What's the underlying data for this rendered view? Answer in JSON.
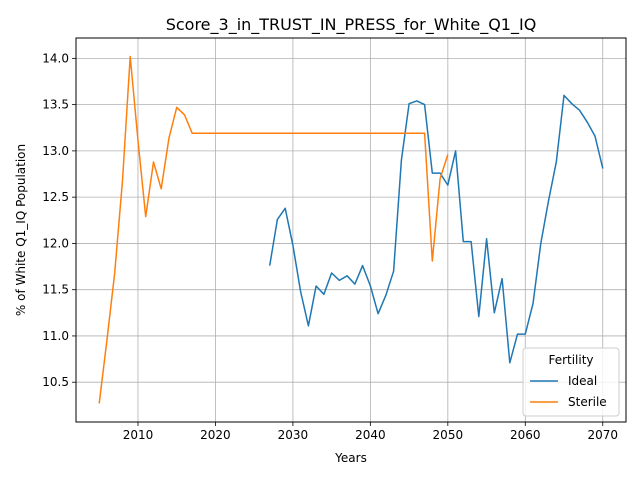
{
  "chart_data": {
    "type": "line",
    "title": "Score_3_in_TRUST_IN_PRESS_for_White_Q1_IQ",
    "xlabel": "Years",
    "ylabel": "% of White Q1_IQ Population",
    "xlim": [
      2002,
      2073
    ],
    "ylim": [
      10.07,
      14.22
    ],
    "xticks": [
      2010,
      2020,
      2030,
      2040,
      2050,
      2060,
      2070
    ],
    "yticks": [
      10.5,
      11.0,
      11.5,
      12.0,
      12.5,
      13.0,
      13.5,
      14.0
    ],
    "xtick_labels": [
      "2010",
      "2020",
      "2030",
      "2040",
      "2050",
      "2060",
      "2070"
    ],
    "ytick_labels": [
      "10.5",
      "11.0",
      "11.5",
      "12.0",
      "12.5",
      "13.0",
      "13.5",
      "14.0"
    ],
    "grid": true,
    "legend": {
      "title": "Fertility",
      "placement": "lower right"
    },
    "series": [
      {
        "name": "Ideal",
        "color": "#1f77b4",
        "x": [
          2027,
          2028,
          2029,
          2030,
          2031,
          2032,
          2033,
          2034,
          2035,
          2036,
          2037,
          2038,
          2039,
          2040,
          2041,
          2042,
          2043,
          2044,
          2045,
          2046,
          2047,
          2048,
          2049,
          2050,
          2051,
          2052,
          2053,
          2054,
          2055,
          2056,
          2057,
          2058,
          2059,
          2060,
          2061,
          2062,
          2063,
          2064,
          2065,
          2066,
          2067,
          2068,
          2069,
          2070
        ],
        "y": [
          11.76,
          12.26,
          12.38,
          11.98,
          11.48,
          11.11,
          11.54,
          11.45,
          11.68,
          11.6,
          11.65,
          11.56,
          11.76,
          11.54,
          11.24,
          11.44,
          11.7,
          12.9,
          13.51,
          13.54,
          13.5,
          12.76,
          12.76,
          12.63,
          13.0,
          12.02,
          12.02,
          11.21,
          12.05,
          11.25,
          11.62,
          10.71,
          11.02,
          11.02,
          11.35,
          12.0,
          12.46,
          12.88,
          13.6,
          13.51,
          13.44,
          13.31,
          13.16,
          12.81
        ]
      },
      {
        "name": "Sterile",
        "color": "#ff7f0e",
        "x": [
          2005,
          2006,
          2007,
          2008,
          2009,
          2010,
          2011,
          2012,
          2013,
          2014,
          2015,
          2016,
          2017,
          2018,
          2019,
          2020,
          2021,
          2022,
          2023,
          2024,
          2025,
          2026,
          2027,
          2028,
          2029,
          2030,
          2031,
          2032,
          2033,
          2034,
          2035,
          2036,
          2037,
          2038,
          2039,
          2040,
          2041,
          2042,
          2043,
          2044,
          2045,
          2046,
          2047,
          2048,
          2049,
          2050
        ],
        "y": [
          10.27,
          10.96,
          11.68,
          12.68,
          14.02,
          13.11,
          12.29,
          12.88,
          12.59,
          13.14,
          13.47,
          13.39,
          13.19,
          13.19,
          13.19,
          13.19,
          13.19,
          13.19,
          13.19,
          13.19,
          13.19,
          13.19,
          13.19,
          13.19,
          13.19,
          13.19,
          13.19,
          13.19,
          13.19,
          13.19,
          13.19,
          13.19,
          13.19,
          13.19,
          13.19,
          13.19,
          13.19,
          13.19,
          13.19,
          13.19,
          13.19,
          13.19,
          13.19,
          11.81,
          12.7,
          12.96
        ]
      }
    ]
  }
}
